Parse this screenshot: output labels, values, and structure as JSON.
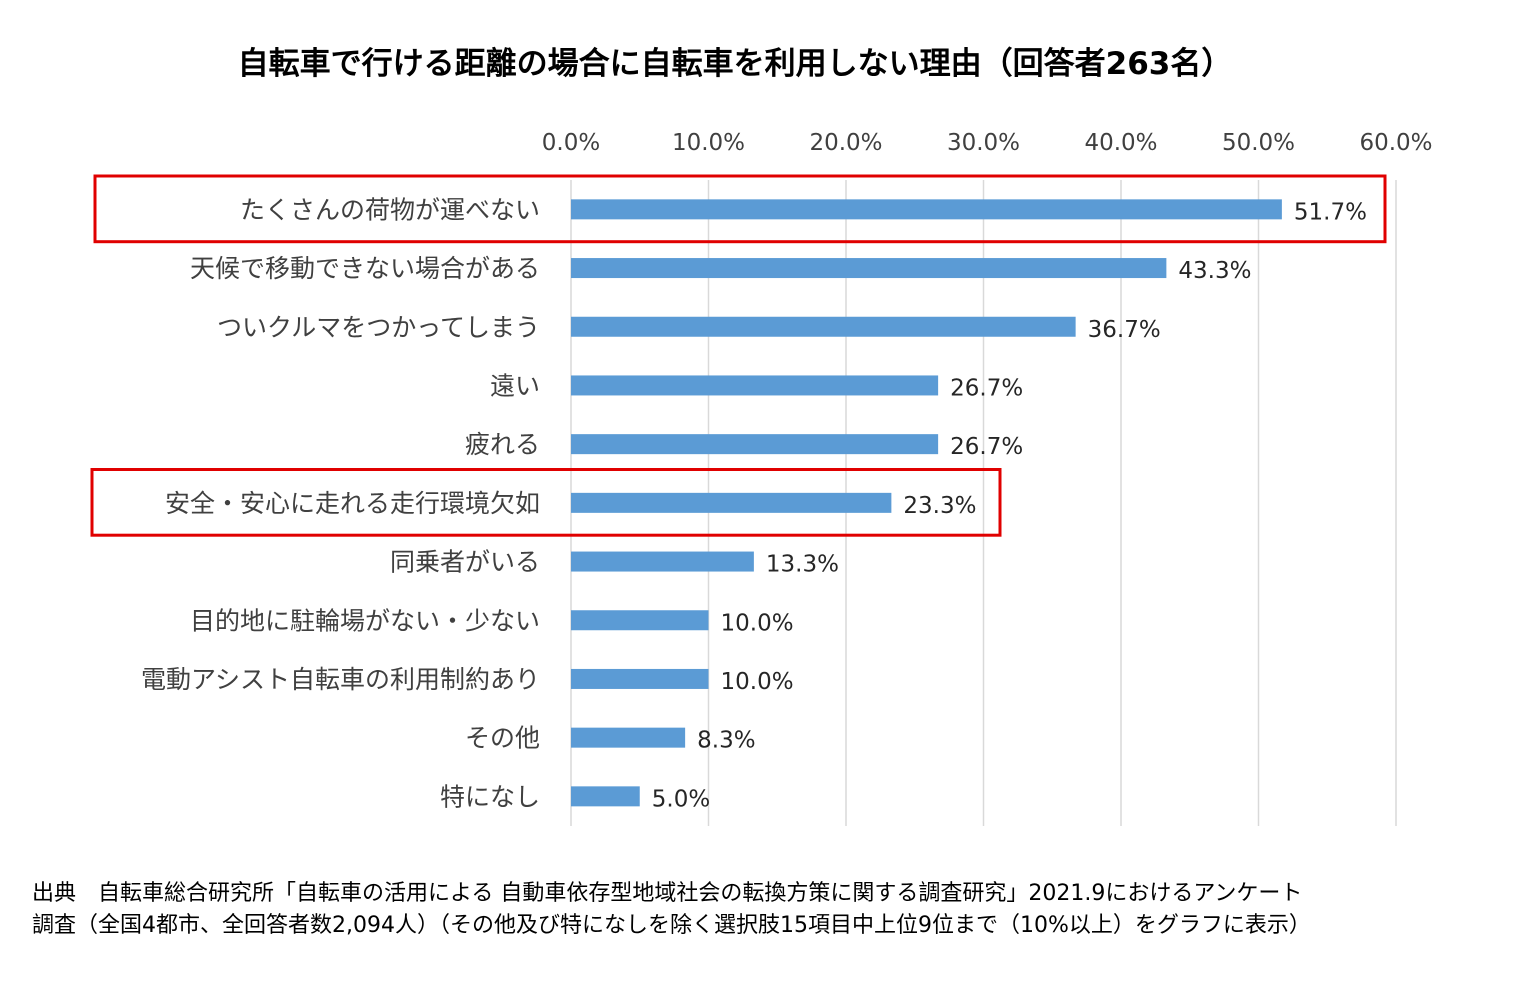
{
  "chart_data": {
    "type": "bar",
    "orientation": "horizontal",
    "title": "自転車で行ける距離の場合に自転車を利用しない理由（回答者263名）",
    "categories": [
      "たくさんの荷物が運べない",
      "天候で移動できない場合がある",
      "ついクルマをつかってしまう",
      "遠い",
      "疲れる",
      "安全・安心に走れる走行環境欠如",
      "同乗者がいる",
      "目的地に駐輪場がない・少ない",
      "電動アシスト自転車の利用制約あり",
      "その他",
      "特になし"
    ],
    "values": [
      51.7,
      43.3,
      36.7,
      26.7,
      26.7,
      23.3,
      13.3,
      10.0,
      10.0,
      8.3,
      5.0
    ],
    "value_labels": [
      "51.7%",
      "43.3%",
      "36.7%",
      "26.7%",
      "26.7%",
      "23.3%",
      "13.3%",
      "10.0%",
      "10.0%",
      "8.3%",
      "5.0%"
    ],
    "xlim": [
      0,
      60
    ],
    "x_ticks": [
      0,
      10,
      20,
      30,
      40,
      50,
      60
    ],
    "x_tick_labels": [
      "0.0%",
      "10.0%",
      "20.0%",
      "30.0%",
      "40.0%",
      "50.0%",
      "60.0%"
    ],
    "axis_position": "top",
    "grid": true,
    "bar_color": "#5b9bd5",
    "highlight_color": "#e00000",
    "highlighted_categories": [
      0,
      5
    ]
  },
  "footnote": {
    "line1": "出典　自転車総合研究所「自転車の活用による 自動車依存型地域社会の転換方策に関する調査研究」2021.9におけるアンケート",
    "line2": "調査（全国4都市、全回答者数2,094人）（その他及び特になしを除く選択肢15項目中上位9位まで（10%以上）をグラフに表示）"
  }
}
